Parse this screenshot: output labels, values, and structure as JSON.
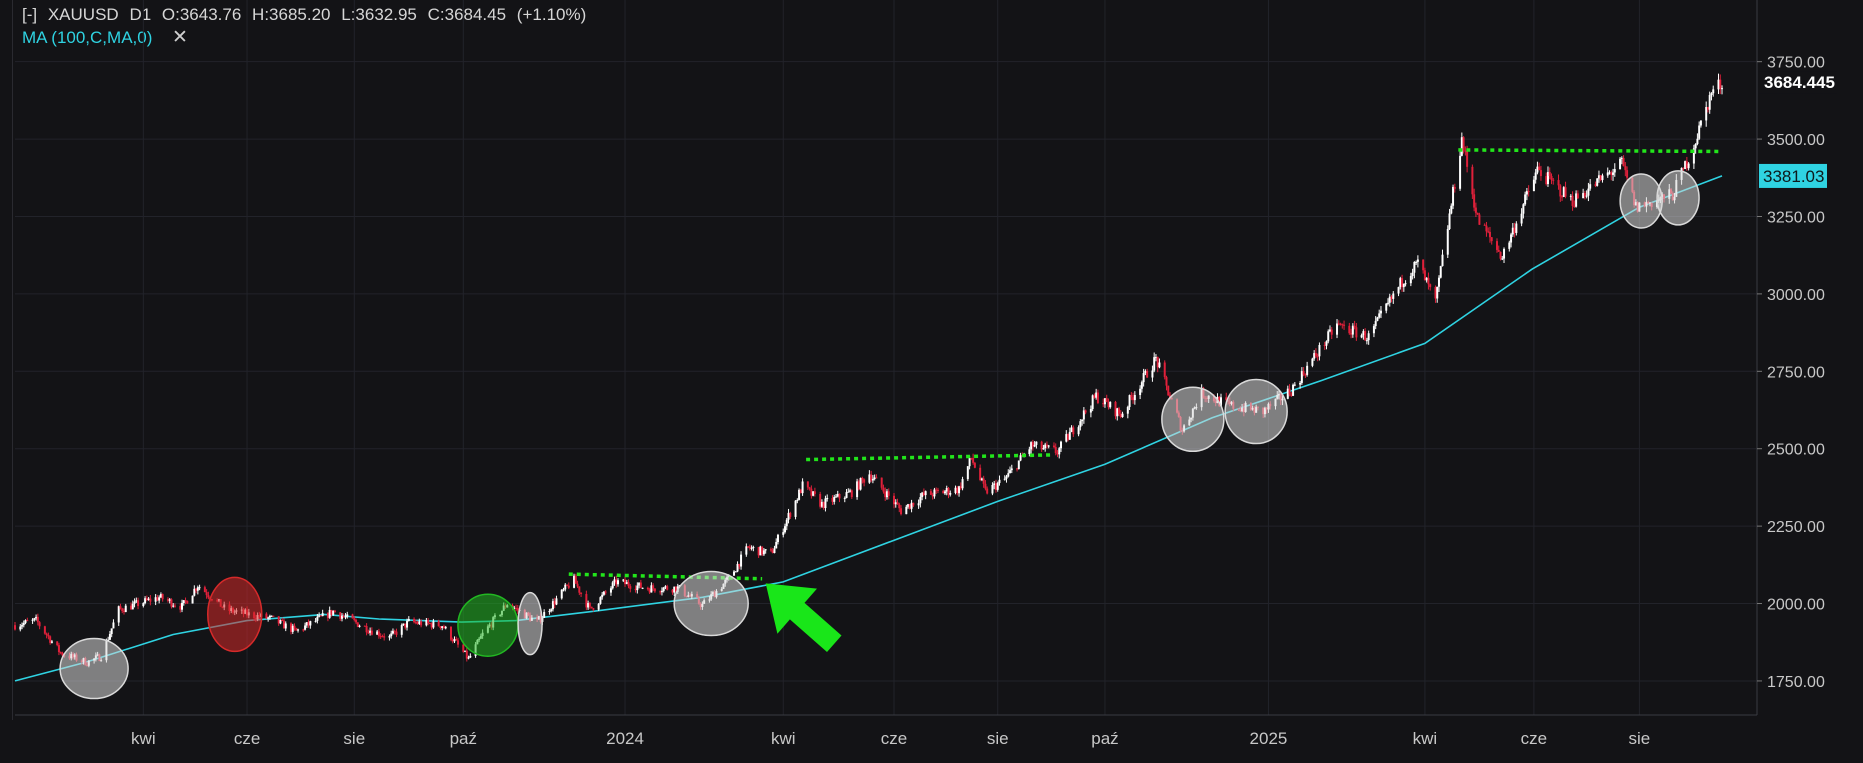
{
  "header": {
    "bracket": "[-]",
    "symbol": "XAUUSD",
    "timeframe": "D1",
    "open": "O:3643.76",
    "high": "H:3685.20",
    "low": "L:3632.95",
    "close": "C:3684.45",
    "change": "(+1.10%)",
    "indicator": "MA (100,C,MA,0)",
    "close_icon": "close-x-icon"
  },
  "colors": {
    "background": "#131316",
    "grid": "#22232a",
    "bull": "#ffffff",
    "bear": "#e0203a",
    "ma": "#2fd3e2",
    "resistance": "#22e51b",
    "arrow": "#19e619",
    "circle_neutral": "#d9d9d9",
    "circle_red": "#d62a2a",
    "circle_green": "#22b822"
  },
  "chart_data": {
    "type": "candlestick",
    "symbol": "XAUUSD",
    "timeframe": "D1",
    "ylim": [
      1640,
      3820
    ],
    "y_ticks": [
      1750,
      2000,
      2250,
      2500,
      2750,
      3000,
      3250,
      3500,
      3750
    ],
    "y_tick_labels": [
      "1750.00",
      "2000.00",
      "2250.00",
      "2500.00",
      "2750.00",
      "3000.00",
      "3250.00",
      "3500.00",
      "3750.00"
    ],
    "x_range": [
      "2023-01-20",
      "2025-09-17"
    ],
    "x_ticks": [
      {
        "date": "2023-04-03",
        "label": "kwi"
      },
      {
        "date": "2023-06-01",
        "label": "cze"
      },
      {
        "date": "2023-08-01",
        "label": "sie"
      },
      {
        "date": "2023-10-02",
        "label": "paź"
      },
      {
        "date": "2024-01-02",
        "label": "2024"
      },
      {
        "date": "2024-04-01",
        "label": "kwi"
      },
      {
        "date": "2024-06-03",
        "label": "cze"
      },
      {
        "date": "2024-08-01",
        "label": "sie"
      },
      {
        "date": "2024-10-01",
        "label": "paź"
      },
      {
        "date": "2025-01-02",
        "label": "2025"
      },
      {
        "date": "2025-04-01",
        "label": "kwi"
      },
      {
        "date": "2025-06-02",
        "label": "cze"
      },
      {
        "date": "2025-08-01",
        "label": "sie"
      }
    ],
    "last_price_label": "3684.445",
    "ma_label": "3381.03",
    "price_path": [
      [
        "2023-01-20",
        1930
      ],
      [
        "2023-02-01",
        1945
      ],
      [
        "2023-02-15",
        1840
      ],
      [
        "2023-03-02",
        1810
      ],
      [
        "2023-03-10",
        1830
      ],
      [
        "2023-03-20",
        1980
      ],
      [
        "2023-04-12",
        2020
      ],
      [
        "2023-04-25",
        1990
      ],
      [
        "2023-05-04",
        2060
      ],
      [
        "2023-05-20",
        1980
      ],
      [
        "2023-06-15",
        1950
      ],
      [
        "2023-06-29",
        1910
      ],
      [
        "2023-07-20",
        1975
      ],
      [
        "2023-08-10",
        1915
      ],
      [
        "2023-08-21",
        1890
      ],
      [
        "2023-09-01",
        1940
      ],
      [
        "2023-09-20",
        1930
      ],
      [
        "2023-10-05",
        1820
      ],
      [
        "2023-10-13",
        1900
      ],
      [
        "2023-10-27",
        2000
      ],
      [
        "2023-11-13",
        1940
      ],
      [
        "2023-12-01",
        2060
      ],
      [
        "2023-12-04",
        2075
      ],
      [
        "2023-12-13",
        1980
      ],
      [
        "2023-12-28",
        2070
      ],
      [
        "2024-01-15",
        2050
      ],
      [
        "2024-02-01",
        2050
      ],
      [
        "2024-02-15",
        1995
      ],
      [
        "2024-03-01",
        2080
      ],
      [
        "2024-03-12",
        2180
      ],
      [
        "2024-03-25",
        2160
      ],
      [
        "2024-04-12",
        2380
      ],
      [
        "2024-04-23",
        2320
      ],
      [
        "2024-05-10",
        2360
      ],
      [
        "2024-05-20",
        2420
      ],
      [
        "2024-06-07",
        2300
      ],
      [
        "2024-06-20",
        2350
      ],
      [
        "2024-07-10",
        2370
      ],
      [
        "2024-07-17",
        2470
      ],
      [
        "2024-07-25",
        2360
      ],
      [
        "2024-08-05",
        2400
      ],
      [
        "2024-08-20",
        2510
      ],
      [
        "2024-09-04",
        2490
      ],
      [
        "2024-09-26",
        2670
      ],
      [
        "2024-10-10",
        2610
      ],
      [
        "2024-10-30",
        2790
      ],
      [
        "2024-11-14",
        2560
      ],
      [
        "2024-11-25",
        2680
      ],
      [
        "2024-12-10",
        2640
      ],
      [
        "2024-12-30",
        2620
      ],
      [
        "2025-01-15",
        2690
      ],
      [
        "2025-02-10",
        2900
      ],
      [
        "2025-02-28",
        2860
      ],
      [
        "2025-03-20",
        3050
      ],
      [
        "2025-03-28",
        3100
      ],
      [
        "2025-04-07",
        2970
      ],
      [
        "2025-04-22",
        3500
      ],
      [
        "2025-05-01",
        3240
      ],
      [
        "2025-05-15",
        3120
      ],
      [
        "2025-06-04",
        3400
      ],
      [
        "2025-06-24",
        3300
      ],
      [
        "2025-07-22",
        3420
      ],
      [
        "2025-07-30",
        3280
      ],
      [
        "2025-08-20",
        3320
      ],
      [
        "2025-09-01",
        3480
      ],
      [
        "2025-09-11",
        3650
      ],
      [
        "2025-09-17",
        3684
      ]
    ],
    "ma100": [
      [
        "2023-01-20",
        1750
      ],
      [
        "2023-03-01",
        1810
      ],
      [
        "2023-04-20",
        1900
      ],
      [
        "2023-06-01",
        1945
      ],
      [
        "2023-07-15",
        1965
      ],
      [
        "2023-08-15",
        1950
      ],
      [
        "2023-10-01",
        1940
      ],
      [
        "2023-11-01",
        1945
      ],
      [
        "2023-12-15",
        1975
      ],
      [
        "2024-02-15",
        2020
      ],
      [
        "2024-04-01",
        2070
      ],
      [
        "2024-06-01",
        2200
      ],
      [
        "2024-08-01",
        2330
      ],
      [
        "2024-10-01",
        2450
      ],
      [
        "2024-12-01",
        2600
      ],
      [
        "2025-02-01",
        2720
      ],
      [
        "2025-04-01",
        2840
      ],
      [
        "2025-06-01",
        3080
      ],
      [
        "2025-08-01",
        3280
      ],
      [
        "2025-09-17",
        3381
      ]
    ],
    "annotations": {
      "resistance_lines": [
        {
          "from": "2023-12-01",
          "to": "2024-03-20",
          "from_price": 2095,
          "to_price": 2080
        },
        {
          "from": "2024-04-14",
          "to": "2024-09-01",
          "from_price": 2465,
          "to_price": 2480
        },
        {
          "from": "2025-04-20",
          "to": "2025-09-17",
          "from_price": 3465,
          "to_price": 3460
        }
      ],
      "circles": [
        {
          "date": "2023-03-06",
          "price": 1790,
          "style": "neutral"
        },
        {
          "date": "2023-05-25",
          "price": 1965,
          "style": "red"
        },
        {
          "date": "2023-10-16",
          "price": 1930,
          "style": "green"
        },
        {
          "date": "2023-11-09",
          "price": 1935,
          "style": "neutral"
        },
        {
          "date": "2024-02-20",
          "price": 2000,
          "style": "neutral"
        },
        {
          "date": "2024-11-20",
          "price": 2595,
          "style": "neutral"
        },
        {
          "date": "2024-12-26",
          "price": 2620,
          "style": "neutral"
        },
        {
          "date": "2025-08-02",
          "price": 3300,
          "style": "neutral"
        },
        {
          "date": "2025-08-23",
          "price": 3310,
          "style": "neutral"
        }
      ],
      "arrow": {
        "tail_date": "2024-04-30",
        "tail_price": 1870,
        "head_date": "2024-03-22",
        "head_price": 2065
      }
    }
  }
}
